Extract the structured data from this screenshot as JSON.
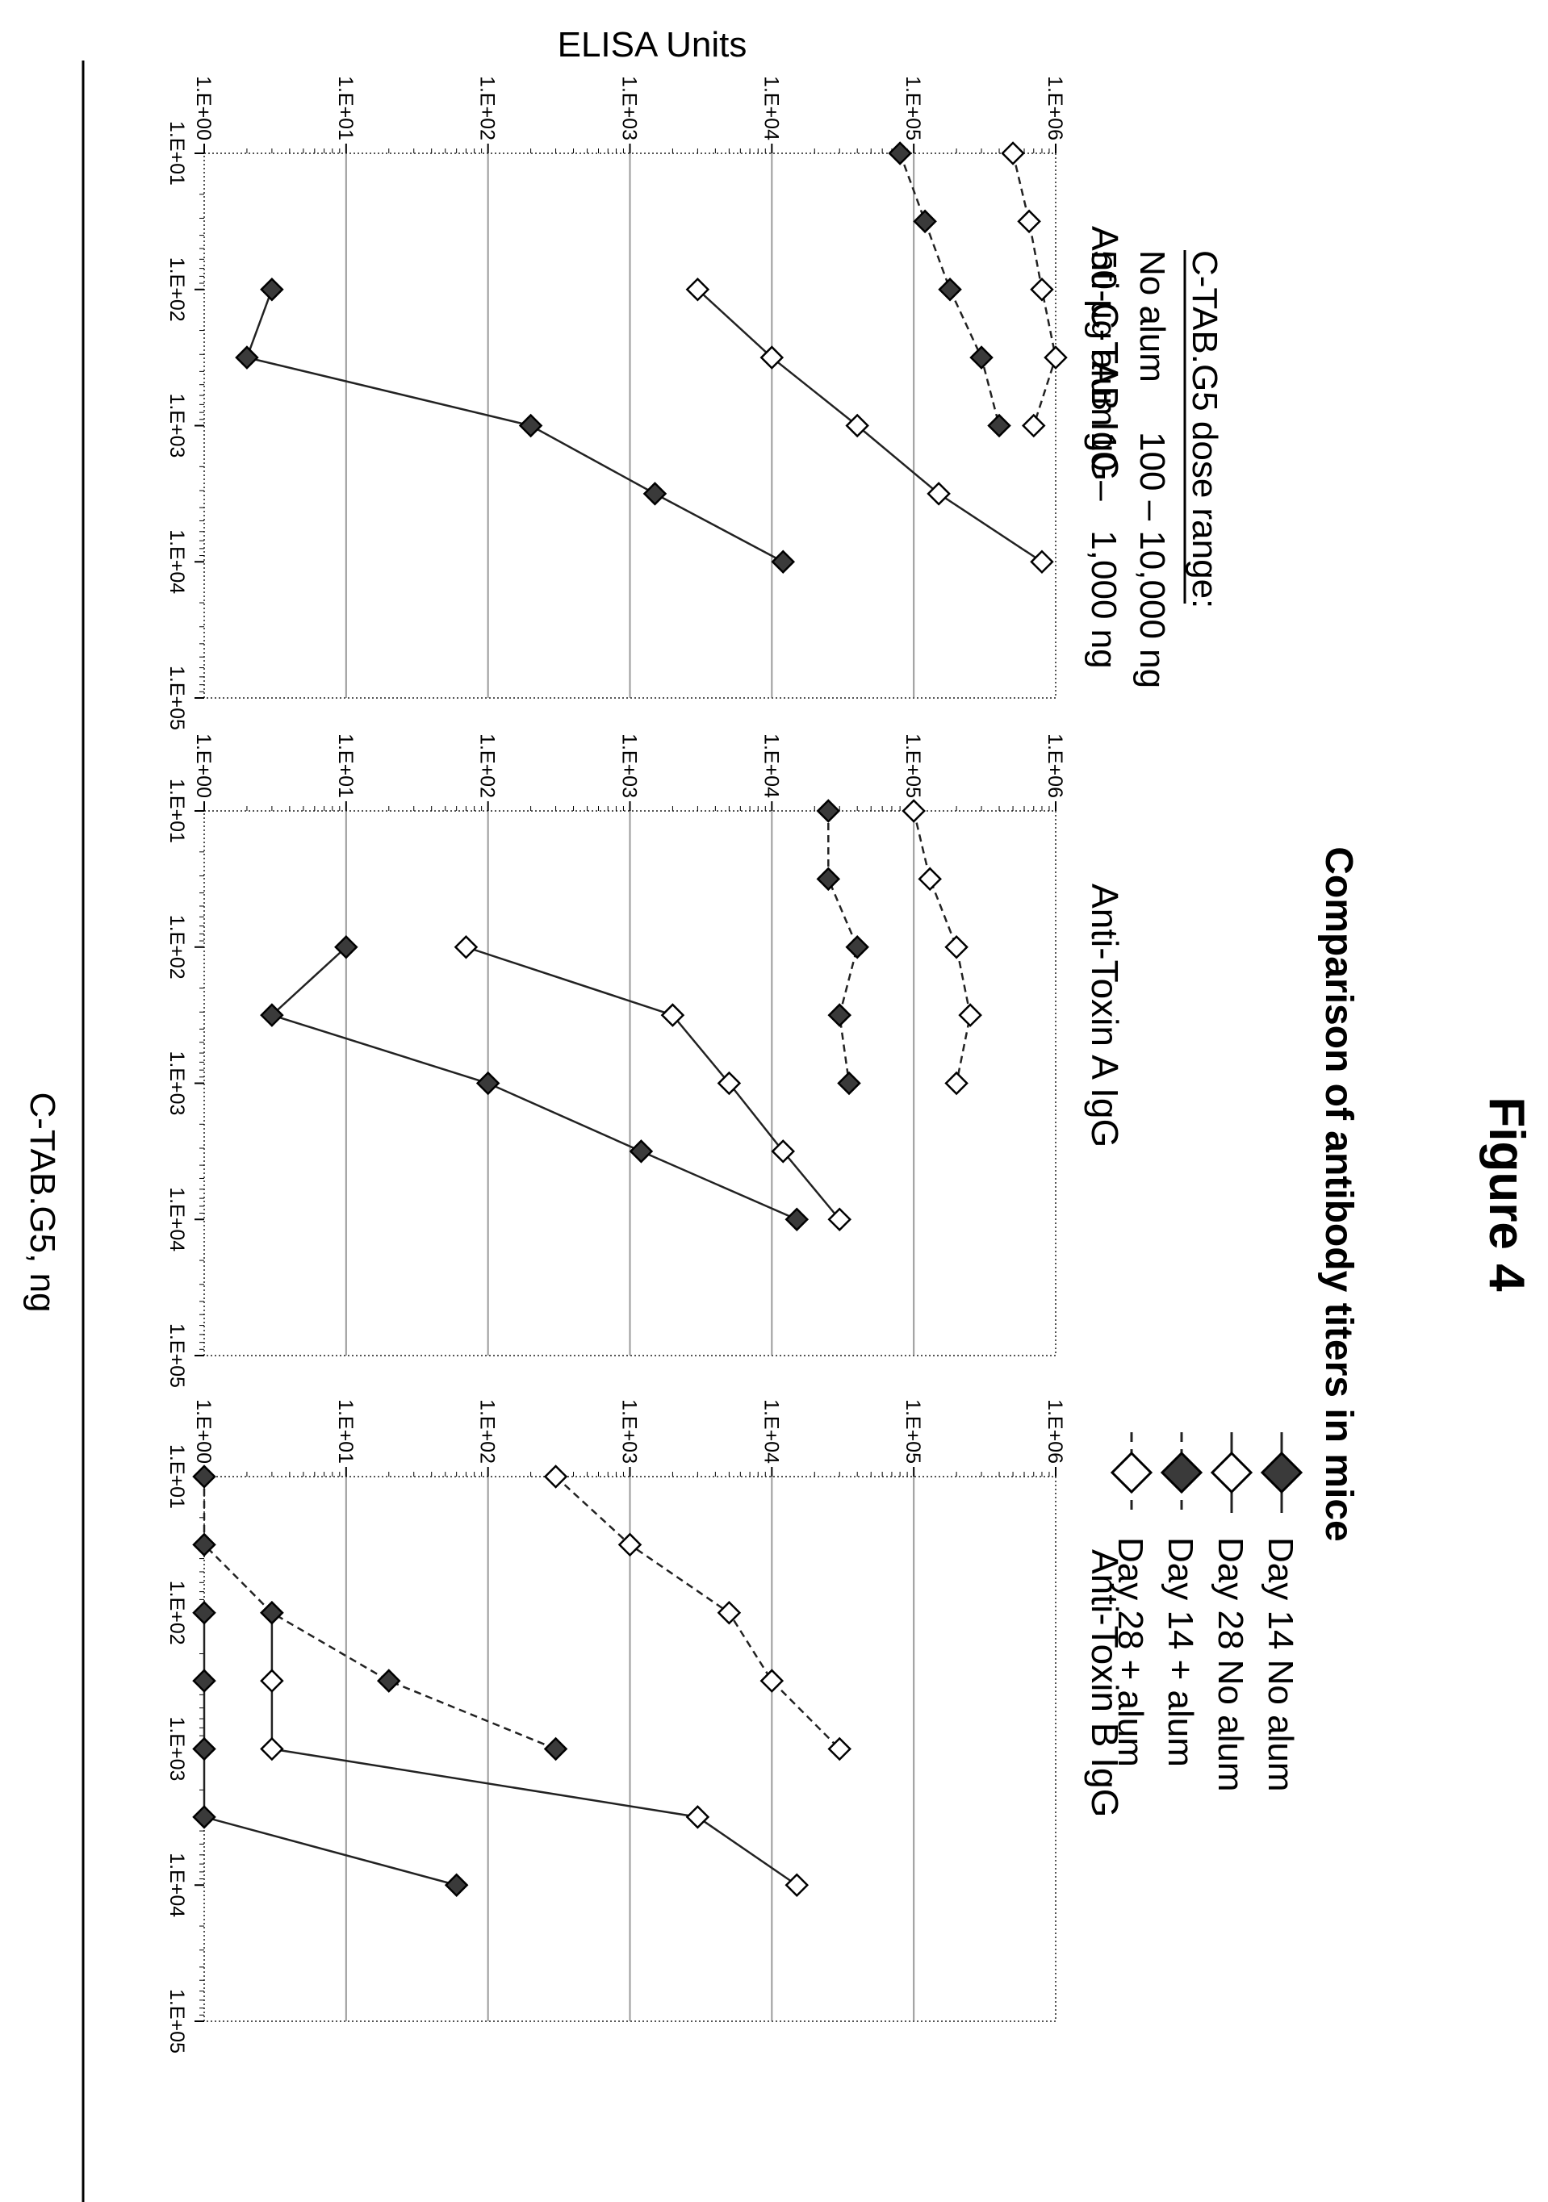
{
  "figure_label": "Figure 4",
  "title": "Comparison of antibody titers in mice",
  "dose_range": {
    "heading": "C-TAB.G5 dose range:",
    "rows": [
      {
        "condition": "No alum",
        "range": "100 – 10,000 ng"
      },
      {
        "condition": "50 µg alum",
        "range": "10 –   1,000 ng"
      }
    ]
  },
  "legend": [
    {
      "label": "Day 14  No alum",
      "marker": "filled-diamond",
      "line": "solid"
    },
    {
      "label": "Day 28  No alum",
      "marker": "open-diamond",
      "line": "solid"
    },
    {
      "label": "Day 14  + alum",
      "marker": "filled-diamond",
      "line": "dashed"
    },
    {
      "label": "Day 28  + alum",
      "marker": "open-diamond",
      "line": "dashed"
    }
  ],
  "y_axis_label": "ELISA Units",
  "x_axis_label": "C-TAB.G5, ng",
  "colors": {
    "grid": "#9a9a9a",
    "marker_fill": "#3a3a3a",
    "line": "#222222"
  },
  "chart_data": [
    {
      "type": "line",
      "title": "Anti-C-TAB IgG",
      "xlabel": "C-TAB.G5, ng",
      "ylabel": "ELISA Units",
      "xscale": "log",
      "yscale": "log",
      "xlim": [
        10,
        100000
      ],
      "ylim": [
        1,
        1000000
      ],
      "x_ticks": [
        "1.E+01",
        "1.E+02",
        "1.E+03",
        "1.E+04",
        "1.E+05"
      ],
      "y_ticks": [
        "1.E+00",
        "1.E+01",
        "1.E+02",
        "1.E+03",
        "1.E+04",
        "1.E+05",
        "1.E+06"
      ],
      "grid": "horizontal",
      "series": [
        {
          "name": "Day 14  No alum",
          "x": [
            100,
            316,
            1000,
            3162,
            10000
          ],
          "y": [
            3,
            2,
            200,
            1500,
            12000
          ]
        },
        {
          "name": "Day 28  No alum",
          "x": [
            100,
            316,
            1000,
            3162,
            10000
          ],
          "y": [
            3000,
            10000,
            40000,
            150000,
            800000
          ]
        },
        {
          "name": "Day 14  + alum",
          "x": [
            10,
            31.6,
            100,
            316,
            1000
          ],
          "y": [
            80000,
            120000,
            180000,
            300000,
            400000
          ]
        },
        {
          "name": "Day 28  + alum",
          "x": [
            10,
            31.6,
            100,
            316,
            1000
          ],
          "y": [
            500000,
            650000,
            800000,
            1000000,
            700000
          ]
        }
      ]
    },
    {
      "type": "line",
      "title": "Anti-Toxin A IgG",
      "xlabel": "C-TAB.G5, ng",
      "ylabel": "ELISA Units",
      "xscale": "log",
      "yscale": "log",
      "xlim": [
        10,
        100000
      ],
      "ylim": [
        1,
        1000000
      ],
      "x_ticks": [
        "1.E+01",
        "1.E+02",
        "1.E+03",
        "1.E+04",
        "1.E+05"
      ],
      "y_ticks": [
        "1.E+00",
        "1.E+01",
        "1.E+02",
        "1.E+03",
        "1.E+04",
        "1.E+05",
        "1.E+06"
      ],
      "grid": "horizontal",
      "series": [
        {
          "name": "Day 14  No alum",
          "x": [
            100,
            316,
            1000,
            3162,
            10000
          ],
          "y": [
            10,
            3,
            100,
            1200,
            15000
          ]
        },
        {
          "name": "Day 28  No alum",
          "x": [
            100,
            316,
            1000,
            3162,
            10000
          ],
          "y": [
            70,
            2000,
            5000,
            12000,
            30000
          ]
        },
        {
          "name": "Day 14  + alum",
          "x": [
            10,
            31.6,
            100,
            316,
            1000
          ],
          "y": [
            25000,
            25000,
            40000,
            30000,
            35000
          ]
        },
        {
          "name": "Day 28  + alum",
          "x": [
            10,
            31.6,
            100,
            316,
            1000
          ],
          "y": [
            100000,
            130000,
            200000,
            250000,
            200000
          ]
        }
      ]
    },
    {
      "type": "line",
      "title": "Anti-Toxin B IgG",
      "xlabel": "C-TAB.G5, ng",
      "ylabel": "ELISA Units",
      "xscale": "log",
      "yscale": "log",
      "xlim": [
        10,
        100000
      ],
      "ylim": [
        1,
        1000000
      ],
      "x_ticks": [
        "1.E+01",
        "1.E+02",
        "1.E+03",
        "1.E+04",
        "1.E+05"
      ],
      "y_ticks": [
        "1.E+00",
        "1.E+01",
        "1.E+02",
        "1.E+03",
        "1.E+04",
        "1.E+05",
        "1.E+06"
      ],
      "grid": "horizontal",
      "series": [
        {
          "name": "Day 14  No alum",
          "x": [
            100,
            316,
            1000,
            3162,
            10000
          ],
          "y": [
            1,
            1,
            1,
            1,
            60
          ]
        },
        {
          "name": "Day 28  No alum",
          "x": [
            100,
            316,
            1000,
            3162,
            10000
          ],
          "y": [
            3,
            3,
            3,
            3000,
            15000
          ]
        },
        {
          "name": "Day 14  + alum",
          "x": [
            10,
            31.6,
            100,
            316,
            1000
          ],
          "y": [
            1,
            1,
            3,
            20,
            300
          ]
        },
        {
          "name": "Day 28  + alum",
          "x": [
            10,
            31.6,
            100,
            316,
            1000
          ],
          "y": [
            300,
            1000,
            5000,
            10000,
            30000
          ]
        }
      ]
    }
  ]
}
